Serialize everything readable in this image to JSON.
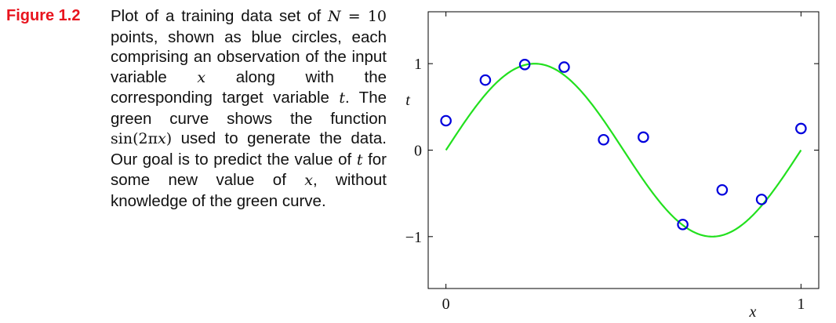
{
  "figure": {
    "label": "Figure 1.2",
    "caption_parts": [
      "Plot of a training data set of ",
      "N",
      " = ",
      "10",
      " points, shown as blue circles, each comprising an observation of the input variable ",
      "x",
      " along with the corresponding target variable ",
      "t",
      ". The green curve shows the function ",
      "sin(2π",
      "x",
      ")",
      " used to generate the data. Our goal is to predict the value of ",
      "t",
      " for some new value of ",
      "x",
      ", without knowledge of the green curve."
    ]
  },
  "chart_data": {
    "type": "scatter",
    "xlabel": "x",
    "ylabel": "t",
    "xlim": [
      -0.05,
      1.05
    ],
    "ylim": [
      -1.6,
      1.6
    ],
    "x_ticks": [
      {
        "value": 0,
        "label": "0"
      },
      {
        "value": 1,
        "label": "1"
      }
    ],
    "y_ticks": [
      {
        "value": 1,
        "label": "1"
      },
      {
        "value": 0,
        "label": "0"
      },
      {
        "value": -1,
        "label": "−1"
      }
    ],
    "grid": false,
    "series": [
      {
        "kind": "points",
        "marker": "open-circle",
        "color": "#0000dd",
        "x": [
          0.0,
          0.111,
          0.222,
          0.333,
          0.444,
          0.556,
          0.667,
          0.778,
          0.889,
          1.0
        ],
        "y": [
          0.34,
          0.81,
          0.99,
          0.96,
          0.12,
          0.15,
          -0.86,
          -0.46,
          -0.57,
          0.25
        ]
      },
      {
        "kind": "curve",
        "function": "sin(2πx)",
        "color": "#22e01e",
        "x_range": [
          0,
          1
        ]
      }
    ]
  }
}
